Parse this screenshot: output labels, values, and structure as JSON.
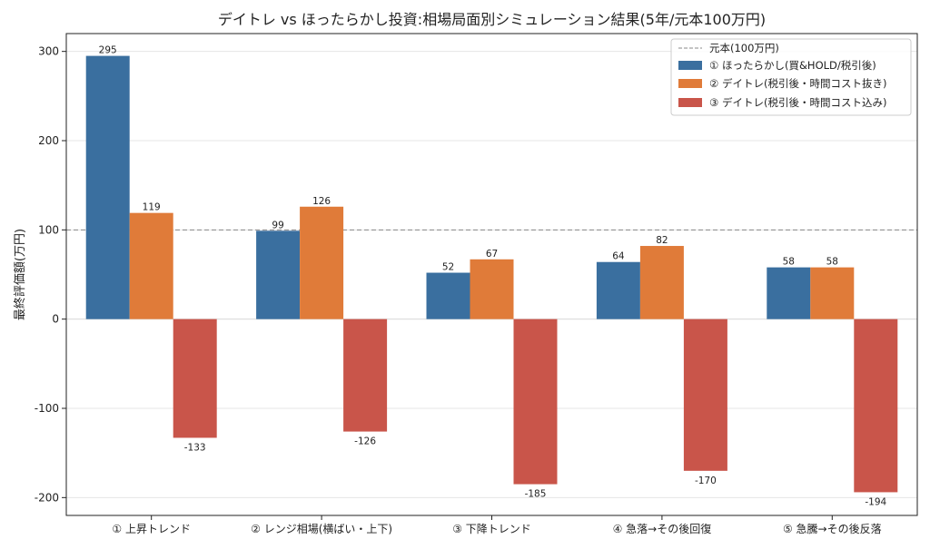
{
  "chart_data": {
    "type": "bar",
    "title": "デイトレ vs ほったらかし投資:相場局面別シミュレーション結果(5年/元本100万円)",
    "xlabel": "",
    "ylabel": "最終評価額(万円)",
    "ylim": [
      -220,
      320
    ],
    "yticks": [
      -200,
      -100,
      0,
      100,
      200,
      300
    ],
    "categories": [
      "① 上昇トレンド",
      "② レンジ相場(横ばい・上下)",
      "③ 下降トレンド",
      "④ 急落→その後回復",
      "⑤ 急騰→その後反落"
    ],
    "series": [
      {
        "name": "① ほったらかし(買&HOLD/税引後)",
        "color": "#3a6f9f",
        "values": [
          295,
          99,
          52,
          64,
          58
        ]
      },
      {
        "name": "② デイトレ(税引後・時間コスト抜き)",
        "color": "#e07b39",
        "values": [
          119,
          126,
          67,
          82,
          58
        ]
      },
      {
        "name": "③ デイトレ(税引後・時間コスト込み)",
        "color": "#c9554a",
        "values": [
          -133,
          -126,
          -185,
          -170,
          -194
        ]
      }
    ],
    "reference_line": {
      "name": "元本(100万円)",
      "value": 100,
      "color": "#888888"
    },
    "grid": "y",
    "legend_position": "top-right"
  }
}
